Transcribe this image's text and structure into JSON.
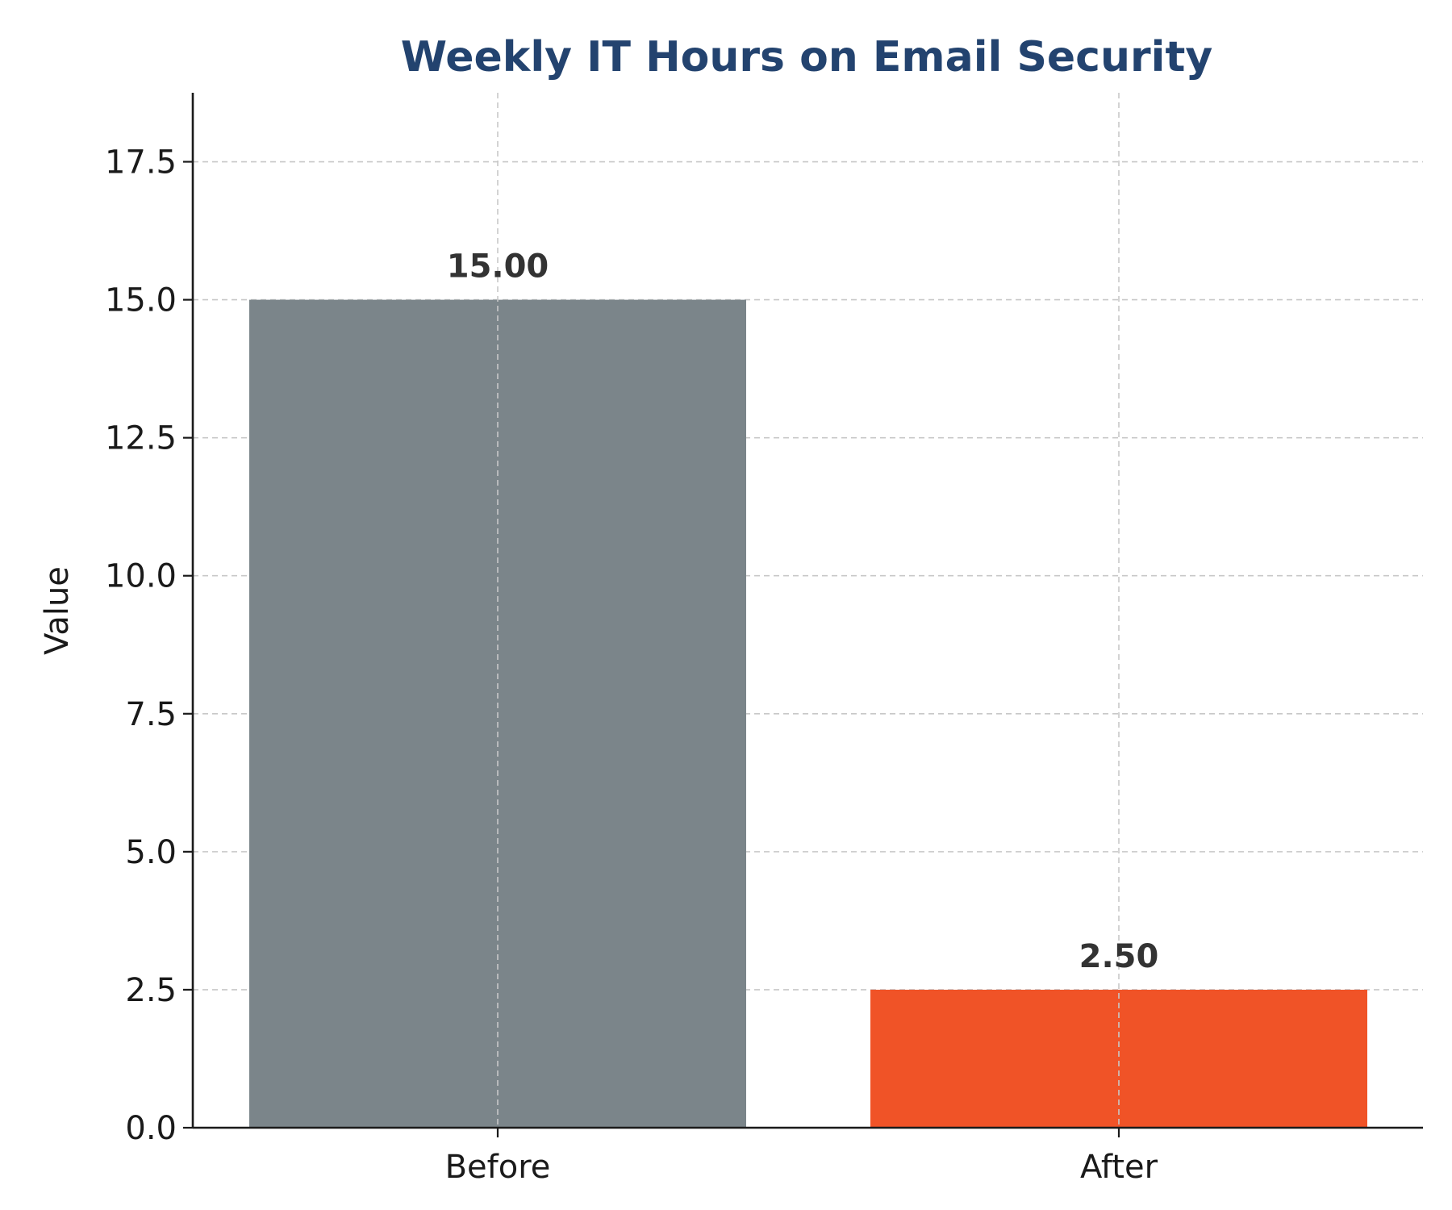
{
  "chart_data": {
    "type": "bar",
    "title": "Weekly IT Hours on Email Security",
    "xlabel": "",
    "ylabel": "Value",
    "categories": [
      "Before",
      "After"
    ],
    "values": [
      15.0,
      2.5
    ],
    "data_labels": [
      "15.00",
      "2.50"
    ],
    "bar_colors": [
      "#7b858a",
      "#f05327"
    ],
    "title_color": "#23436f",
    "ylim": [
      0,
      18.75
    ],
    "yticks": [
      0.0,
      2.5,
      5.0,
      7.5,
      10.0,
      12.5,
      15.0,
      17.5
    ],
    "ytick_labels": [
      "0.0",
      "2.5",
      "5.0",
      "7.5",
      "10.0",
      "12.5",
      "15.0",
      "17.5"
    ],
    "grid": true,
    "legend": "none"
  }
}
